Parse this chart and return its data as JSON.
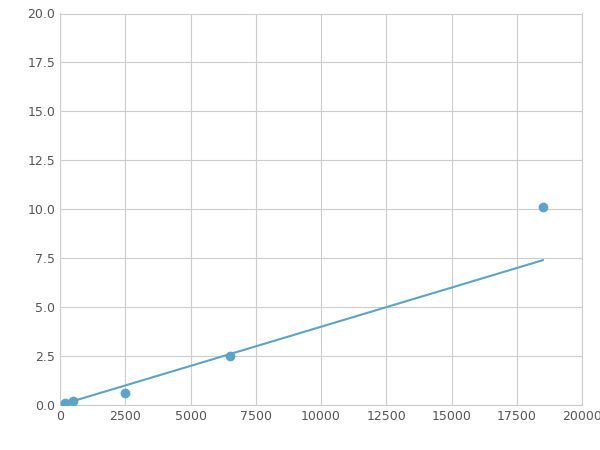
{
  "x": [
    200,
    500,
    2500,
    6500,
    18500
  ],
  "y": [
    0.1,
    0.2,
    0.6,
    2.5,
    10.1
  ],
  "line_color": "#5ba3c9",
  "marker_color": "#5ba3c9",
  "marker_size": 6,
  "xlim": [
    0,
    20000
  ],
  "ylim": [
    0,
    20
  ],
  "xticks": [
    0,
    2500,
    5000,
    7500,
    10000,
    12500,
    15000,
    17500,
    20000
  ],
  "yticks": [
    0.0,
    2.5,
    5.0,
    7.5,
    10.0,
    12.5,
    15.0,
    17.5,
    20.0
  ],
  "grid_color": "#cccccc",
  "background_color": "#ffffff",
  "figure_bg": "#ffffff",
  "linewidth": 1.5
}
